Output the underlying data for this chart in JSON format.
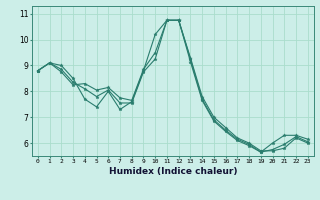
{
  "title": "",
  "xlabel": "Humidex (Indice chaleur)",
  "bg_color": "#cceee8",
  "grid_color": "#aaddcc",
  "line_color": "#2a7d6e",
  "xlim": [
    -0.5,
    23.5
  ],
  "ylim": [
    5.5,
    11.3
  ],
  "yticks": [
    6,
    7,
    8,
    9,
    10,
    11
  ],
  "xticks": [
    0,
    1,
    2,
    3,
    4,
    5,
    6,
    7,
    8,
    9,
    10,
    11,
    12,
    13,
    14,
    15,
    16,
    17,
    18,
    19,
    20,
    21,
    22,
    23
  ],
  "line1": [
    8.8,
    9.1,
    9.0,
    8.5,
    7.7,
    7.4,
    8.0,
    7.3,
    7.6,
    8.8,
    10.2,
    10.75,
    10.75,
    9.3,
    7.8,
    7.0,
    6.6,
    6.2,
    6.0,
    5.7,
    5.7,
    5.8,
    6.2,
    6.0
  ],
  "line2": [
    8.8,
    9.1,
    8.85,
    8.35,
    8.1,
    7.8,
    8.05,
    7.55,
    7.55,
    8.75,
    9.25,
    10.75,
    10.75,
    9.15,
    7.65,
    6.85,
    6.45,
    6.1,
    5.9,
    5.65,
    5.75,
    5.95,
    6.25,
    6.05
  ],
  "line3": [
    8.8,
    9.1,
    8.75,
    8.25,
    8.3,
    8.05,
    8.15,
    7.75,
    7.65,
    8.85,
    9.5,
    10.75,
    10.75,
    9.25,
    7.7,
    6.9,
    6.5,
    6.15,
    5.95,
    5.65,
    6.0,
    6.3,
    6.3,
    6.15
  ]
}
